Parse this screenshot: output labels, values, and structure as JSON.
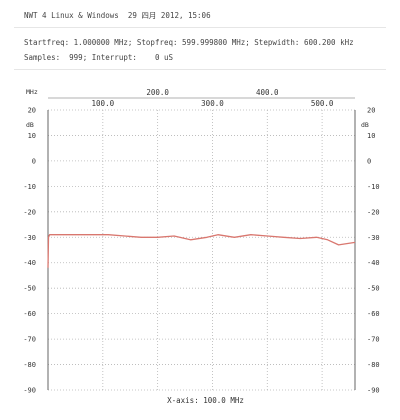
{
  "header": {
    "title": "NWT 4 Linux & Windows  29 四月 2012, 15:06",
    "params": "Startfreq: 1.000000 MHz; Stopfreq: 599.999800 MHz; Stepwidth: 600.200 kHz",
    "samples": "Samples:  999; Interrupt:    0 uS"
  },
  "chart_data": {
    "type": "line",
    "xlim": [
      0,
      560
    ],
    "ylim": [
      -90,
      20
    ],
    "x_unit_label": "MHz",
    "y_unit_label": "dB",
    "x_ticks_upper": [
      200,
      400
    ],
    "x_tick_labels_upper": [
      "200.0",
      "400.0"
    ],
    "x_ticks_lower": [
      100,
      300,
      500
    ],
    "x_tick_labels_lower": [
      "100.0",
      "300.0",
      "500.0"
    ],
    "x_gridlines": [
      100,
      200,
      300,
      400,
      500
    ],
    "y_ticks": [
      20,
      10,
      0,
      -10,
      -20,
      -30,
      -40,
      -50,
      -60,
      -70,
      -80,
      -90
    ],
    "y_tick_labels": [
      "20",
      "10",
      "0",
      "-10",
      "-20",
      "-30",
      "-40",
      "-50",
      "-60",
      "-70",
      "-80",
      "-90"
    ],
    "xlabel": "X-axis: 100.0 MHz",
    "grid": true,
    "colors": {
      "trace": "#d9776f",
      "grid": "#b5b5b5",
      "axes": "#666666"
    },
    "series": [
      {
        "x": [
          0,
          1,
          3,
          10,
          40,
          80,
          110,
          140,
          170,
          200,
          230,
          260,
          290,
          310,
          340,
          370,
          400,
          430,
          460,
          490,
          510,
          530,
          545,
          560
        ],
        "y": [
          -42,
          -30,
          -29,
          -29,
          -29,
          -29,
          -29,
          -29.5,
          -30,
          -30,
          -29.5,
          -31,
          -30,
          -29,
          -30,
          -29,
          -29.5,
          -30,
          -30.5,
          -30,
          -31,
          -33,
          -32.5,
          -32
        ]
      }
    ]
  }
}
